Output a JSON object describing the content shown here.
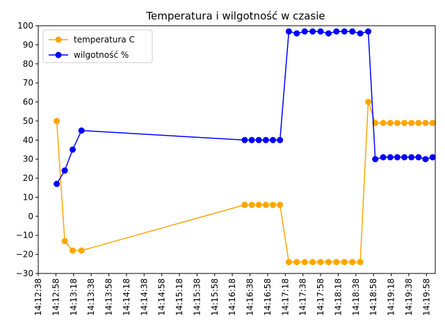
{
  "chart_data": {
    "type": "line",
    "title": "Temperatura i wilgotność w czasie",
    "xlabel": "",
    "ylabel": "",
    "ylim": [
      -30,
      100
    ],
    "yticks": [
      -30,
      -20,
      -10,
      0,
      10,
      20,
      30,
      40,
      50,
      60,
      70,
      80,
      90,
      100
    ],
    "xlim": [
      "14:12:38",
      "14:20:08"
    ],
    "xticks": [
      "14:12:38",
      "14:12:58",
      "14:13:18",
      "14:13:38",
      "14:13:58",
      "14:14:18",
      "14:14:38",
      "14:14:58",
      "14:15:18",
      "14:15:38",
      "14:15:58",
      "14:16:18",
      "14:16:38",
      "14:16:58",
      "14:17:18",
      "14:17:38",
      "14:17:58",
      "14:18:18",
      "14:18:38",
      "14:18:58",
      "14:19:18",
      "14:19:38",
      "14:19:58"
    ],
    "legend_position": "upper-left",
    "grid": false,
    "series": [
      {
        "name": "temperatura C",
        "color": "#ffa500",
        "points": [
          [
            "14:12:59",
            50
          ],
          [
            "14:13:08",
            -13
          ],
          [
            "14:13:17",
            -18
          ],
          [
            "14:13:27",
            -18
          ],
          [
            "14:16:32",
            6
          ],
          [
            "14:16:40",
            6
          ],
          [
            "14:16:48",
            6
          ],
          [
            "14:16:56",
            6
          ],
          [
            "14:17:04",
            6
          ],
          [
            "14:17:12",
            6
          ],
          [
            "14:17:22",
            -24
          ],
          [
            "14:17:31",
            -24
          ],
          [
            "14:17:40",
            -24
          ],
          [
            "14:17:49",
            -24
          ],
          [
            "14:17:58",
            -24
          ],
          [
            "14:18:07",
            -24
          ],
          [
            "14:18:16",
            -24
          ],
          [
            "14:18:25",
            -24
          ],
          [
            "14:18:34",
            -24
          ],
          [
            "14:18:43",
            -24
          ],
          [
            "14:18:52",
            60
          ],
          [
            "14:19:00",
            49
          ],
          [
            "14:19:09",
            49
          ],
          [
            "14:19:17",
            49
          ],
          [
            "14:19:25",
            49
          ],
          [
            "14:19:33",
            49
          ],
          [
            "14:19:41",
            49
          ],
          [
            "14:19:49",
            49
          ],
          [
            "14:19:57",
            49
          ],
          [
            "14:20:05",
            49
          ]
        ]
      },
      {
        "name": "wilgotność %",
        "color": "#0000ff",
        "points": [
          [
            "14:12:59",
            17
          ],
          [
            "14:13:08",
            24
          ],
          [
            "14:13:17",
            35
          ],
          [
            "14:13:27",
            45
          ],
          [
            "14:16:32",
            40
          ],
          [
            "14:16:40",
            40
          ],
          [
            "14:16:48",
            40
          ],
          [
            "14:16:56",
            40
          ],
          [
            "14:17:04",
            40
          ],
          [
            "14:17:12",
            40
          ],
          [
            "14:17:22",
            97
          ],
          [
            "14:17:31",
            96
          ],
          [
            "14:17:40",
            97
          ],
          [
            "14:17:49",
            97
          ],
          [
            "14:17:58",
            97
          ],
          [
            "14:18:07",
            96
          ],
          [
            "14:18:16",
            97
          ],
          [
            "14:18:25",
            97
          ],
          [
            "14:18:34",
            97
          ],
          [
            "14:18:43",
            96
          ],
          [
            "14:18:52",
            97
          ],
          [
            "14:19:00",
            30
          ],
          [
            "14:19:09",
            31
          ],
          [
            "14:19:17",
            31
          ],
          [
            "14:19:25",
            31
          ],
          [
            "14:19:33",
            31
          ],
          [
            "14:19:41",
            31
          ],
          [
            "14:19:49",
            31
          ],
          [
            "14:19:57",
            30
          ],
          [
            "14:20:05",
            31
          ]
        ]
      }
    ]
  }
}
